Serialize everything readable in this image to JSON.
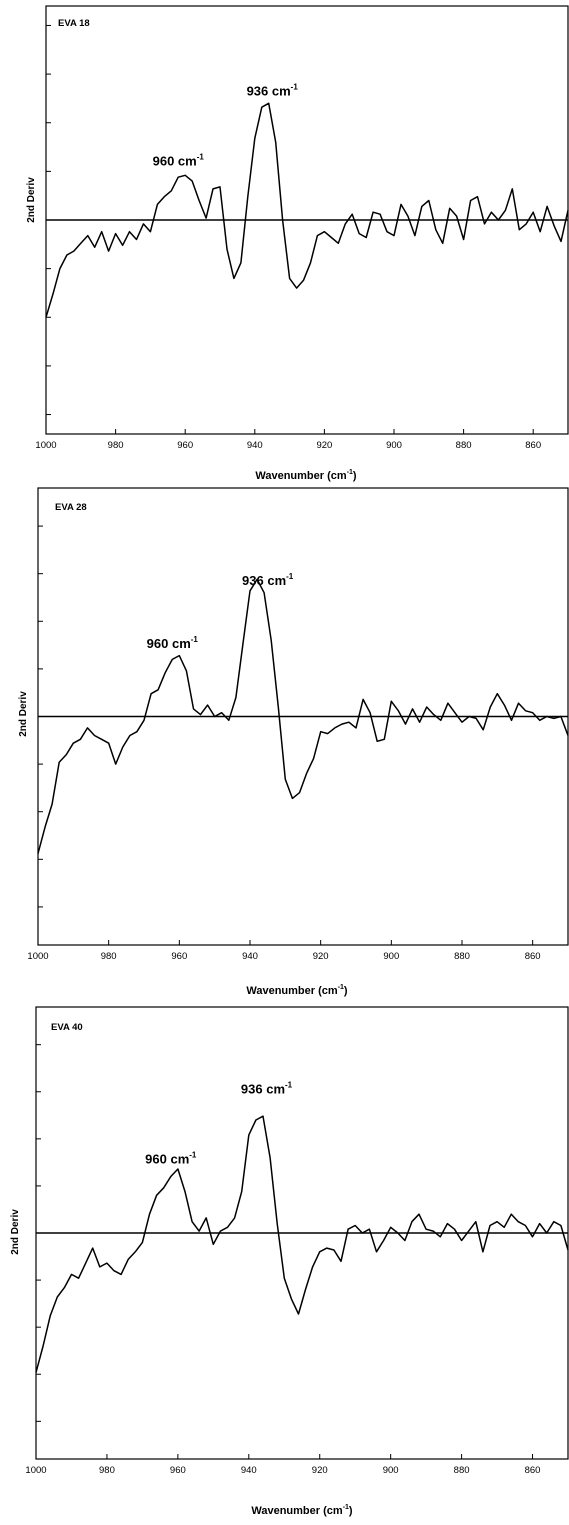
{
  "chart_data": [
    {
      "type": "line",
      "title": "EVA 18",
      "xlabel_main": "Wavenumber (cm",
      "xlabel_sup": "-1",
      "xlabel_tail": ")",
      "ylabel": "2nd Deriv",
      "xlim": [
        1000,
        850
      ],
      "ylim": [
        -1.1,
        1.1
      ],
      "xticks": [
        "1000",
        "980",
        "960",
        "940",
        "920",
        "900",
        "880",
        "860"
      ],
      "yticks": [
        -1.0,
        -0.75,
        -0.5,
        -0.25,
        0,
        0.25,
        0.5,
        0.75,
        1.0
      ],
      "baseline": 0,
      "annotations": [
        {
          "text": "960 cm",
          "sup": "-1",
          "x": 962,
          "y": 0.28
        },
        {
          "text": "936 cm",
          "sup": "-1",
          "x": 935,
          "y": 0.64
        }
      ],
      "series": [
        {
          "x": [
            1000,
            998,
            996,
            994,
            992,
            990,
            988,
            986,
            984,
            982,
            980,
            978,
            976,
            974,
            972,
            970,
            968,
            966,
            964,
            962,
            960,
            958,
            956,
            954,
            952,
            950,
            948,
            946,
            944,
            942,
            940,
            938,
            936,
            934,
            932,
            930,
            928,
            926,
            924,
            922,
            920,
            918,
            916,
            914,
            912,
            910,
            908,
            906,
            904,
            902,
            900,
            898,
            896,
            894,
            892,
            890,
            888,
            886,
            884,
            882,
            880,
            878,
            876,
            874,
            872,
            870,
            868,
            866,
            864,
            862,
            860,
            858,
            856,
            854,
            852,
            850
          ],
          "y": [
            -0.5,
            -0.38,
            -0.25,
            -0.18,
            -0.16,
            -0.12,
            -0.08,
            -0.14,
            -0.06,
            -0.16,
            -0.07,
            -0.13,
            -0.06,
            -0.1,
            -0.02,
            -0.06,
            0.08,
            0.12,
            0.15,
            0.22,
            0.23,
            0.2,
            0.1,
            0.01,
            0.16,
            0.17,
            -0.15,
            -0.3,
            -0.22,
            0.12,
            0.42,
            0.58,
            0.6,
            0.4,
            0.0,
            -0.3,
            -0.35,
            -0.31,
            -0.22,
            -0.08,
            -0.06,
            -0.09,
            -0.12,
            -0.02,
            0.03,
            -0.07,
            -0.09,
            0.04,
            0.03,
            -0.06,
            -0.08,
            0.08,
            0.02,
            -0.08,
            0.07,
            0.1,
            -0.05,
            -0.12,
            0.06,
            0.02,
            -0.1,
            0.1,
            0.12,
            -0.02,
            0.04,
            0.0,
            0.05,
            0.16,
            -0.05,
            -0.02,
            0.04,
            -0.06,
            0.07,
            -0.03,
            -0.11,
            0.05
          ]
        }
      ]
    },
    {
      "type": "line",
      "title": "EVA 28",
      "xlabel_main": "Wavenumber (cm",
      "xlabel_sup": "-1",
      "xlabel_tail": ")",
      "ylabel": "2nd Deriv",
      "xlim": [
        1000,
        850
      ],
      "ylim": [
        -1.2,
        1.2
      ],
      "xticks": [
        "1000",
        "980",
        "960",
        "940",
        "920",
        "900",
        "880",
        "860"
      ],
      "yticks": [
        -1.0,
        -0.75,
        -0.5,
        -0.25,
        0,
        0.25,
        0.5,
        0.75,
        1.0
      ],
      "baseline": 0,
      "annotations": [
        {
          "text": "960 cm",
          "sup": "-1",
          "x": 962,
          "y": 0.36
        },
        {
          "text": "936 cm",
          "sup": "-1",
          "x": 935,
          "y": 0.69
        }
      ],
      "series": [
        {
          "x": [
            1000,
            998,
            996,
            994,
            992,
            990,
            988,
            986,
            984,
            982,
            980,
            978,
            976,
            974,
            972,
            970,
            968,
            966,
            964,
            962,
            960,
            958,
            956,
            954,
            952,
            950,
            948,
            946,
            944,
            942,
            940,
            938,
            936,
            934,
            932,
            930,
            928,
            926,
            924,
            922,
            920,
            918,
            916,
            914,
            912,
            910,
            908,
            906,
            904,
            902,
            900,
            898,
            896,
            894,
            892,
            890,
            888,
            886,
            884,
            882,
            880,
            878,
            876,
            874,
            872,
            870,
            868,
            866,
            864,
            862,
            860,
            858,
            856,
            854,
            852,
            850
          ],
          "y": [
            -0.72,
            -0.58,
            -0.46,
            -0.24,
            -0.2,
            -0.14,
            -0.12,
            -0.06,
            -0.1,
            -0.12,
            -0.14,
            -0.25,
            -0.16,
            -0.1,
            -0.08,
            -0.02,
            0.12,
            0.14,
            0.23,
            0.3,
            0.32,
            0.24,
            0.04,
            0.01,
            0.06,
            0.0,
            0.02,
            -0.02,
            0.1,
            0.38,
            0.66,
            0.72,
            0.65,
            0.4,
            0.05,
            -0.33,
            -0.43,
            -0.4,
            -0.3,
            -0.22,
            -0.08,
            -0.09,
            -0.06,
            -0.04,
            -0.03,
            -0.06,
            0.09,
            0.02,
            -0.13,
            -0.12,
            0.08,
            0.03,
            -0.04,
            0.04,
            -0.03,
            0.05,
            0.01,
            -0.02,
            0.07,
            0.02,
            -0.03,
            0.0,
            -0.01,
            -0.07,
            0.05,
            0.12,
            0.06,
            -0.02,
            0.07,
            0.03,
            0.02,
            -0.02,
            0.0,
            -0.01,
            0.0,
            -0.1
          ]
        }
      ]
    },
    {
      "type": "line",
      "title": "EVA 40",
      "xlabel_main": "Wavenumber (cm",
      "xlabel_sup": "-1",
      "xlabel_tail": ")",
      "ylabel": "2nd Deriv",
      "xlim": [
        1000,
        850
      ],
      "ylim": [
        -1.2,
        1.2
      ],
      "xticks": [
        "1000",
        "980",
        "960",
        "940",
        "920",
        "900",
        "880",
        "860"
      ],
      "yticks": [
        -1.0,
        -0.75,
        -0.5,
        -0.25,
        0,
        0.25,
        0.5,
        0.75,
        1.0
      ],
      "baseline": 0,
      "annotations": [
        {
          "text": "960 cm",
          "sup": "-1",
          "x": 962,
          "y": 0.37
        },
        {
          "text": "936 cm",
          "sup": "-1",
          "x": 935,
          "y": 0.74
        }
      ],
      "series": [
        {
          "x": [
            1000,
            998,
            996,
            994,
            992,
            990,
            988,
            986,
            984,
            982,
            980,
            978,
            976,
            974,
            972,
            970,
            968,
            966,
            964,
            962,
            960,
            958,
            956,
            954,
            952,
            950,
            948,
            946,
            944,
            942,
            940,
            938,
            936,
            934,
            932,
            930,
            928,
            926,
            924,
            922,
            920,
            918,
            916,
            914,
            912,
            910,
            908,
            906,
            904,
            902,
            900,
            898,
            896,
            894,
            892,
            890,
            888,
            886,
            884,
            882,
            880,
            878,
            876,
            874,
            872,
            870,
            868,
            866,
            864,
            862,
            860,
            858,
            856,
            854,
            852,
            850
          ],
          "y": [
            -0.74,
            -0.6,
            -0.44,
            -0.34,
            -0.29,
            -0.22,
            -0.24,
            -0.16,
            -0.08,
            -0.18,
            -0.16,
            -0.2,
            -0.22,
            -0.14,
            -0.1,
            -0.05,
            0.1,
            0.2,
            0.24,
            0.3,
            0.34,
            0.22,
            0.06,
            0.01,
            0.08,
            -0.06,
            0.01,
            0.03,
            0.08,
            0.22,
            0.52,
            0.6,
            0.62,
            0.4,
            0.05,
            -0.24,
            -0.35,
            -0.43,
            -0.3,
            -0.18,
            -0.1,
            -0.08,
            -0.09,
            -0.15,
            0.02,
            0.04,
            0.0,
            0.02,
            -0.1,
            -0.04,
            0.03,
            0.0,
            -0.04,
            0.06,
            0.1,
            0.02,
            0.01,
            -0.02,
            0.05,
            0.02,
            -0.04,
            0.01,
            0.06,
            -0.1,
            0.04,
            0.06,
            0.03,
            0.1,
            0.06,
            0.04,
            -0.02,
            0.05,
            0.0,
            0.06,
            0.04,
            -0.09
          ]
        }
      ]
    }
  ]
}
